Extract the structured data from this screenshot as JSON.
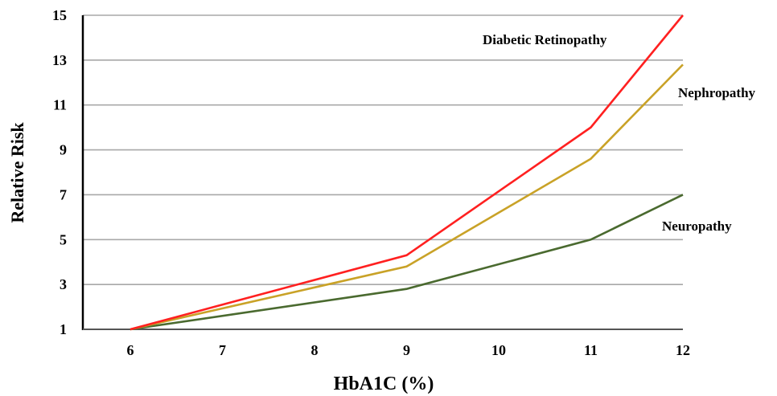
{
  "chart_data": {
    "type": "line",
    "title": "",
    "xlabel": "HbA1C (%)",
    "ylabel": "Relative Risk",
    "x": [
      6,
      7,
      8,
      9,
      10,
      11,
      12
    ],
    "x_ticks": [
      "6",
      "7",
      "8",
      "9",
      "10",
      "11",
      "12"
    ],
    "y_ticks": [
      "1",
      "3",
      "5",
      "7",
      "9",
      "11",
      "13",
      "15"
    ],
    "xlim": [
      6,
      12
    ],
    "ylim": [
      1,
      15
    ],
    "grid": "horizontal",
    "series": [
      {
        "name": "Diabetic Retinopathy",
        "color": "#ff2020",
        "points": [
          [
            6,
            1.0
          ],
          [
            9,
            4.3
          ],
          [
            11,
            10.0
          ],
          [
            12,
            15.0
          ]
        ]
      },
      {
        "name": "Nephropathy",
        "color": "#c9a227",
        "points": [
          [
            6,
            1.0
          ],
          [
            9,
            3.8
          ],
          [
            11,
            8.6
          ],
          [
            12,
            12.8
          ]
        ]
      },
      {
        "name": "Neuropathy",
        "color": "#4a6a2f",
        "points": [
          [
            6,
            1.0
          ],
          [
            9,
            2.8
          ],
          [
            11,
            5.0
          ],
          [
            12,
            7.0
          ]
        ]
      }
    ]
  }
}
